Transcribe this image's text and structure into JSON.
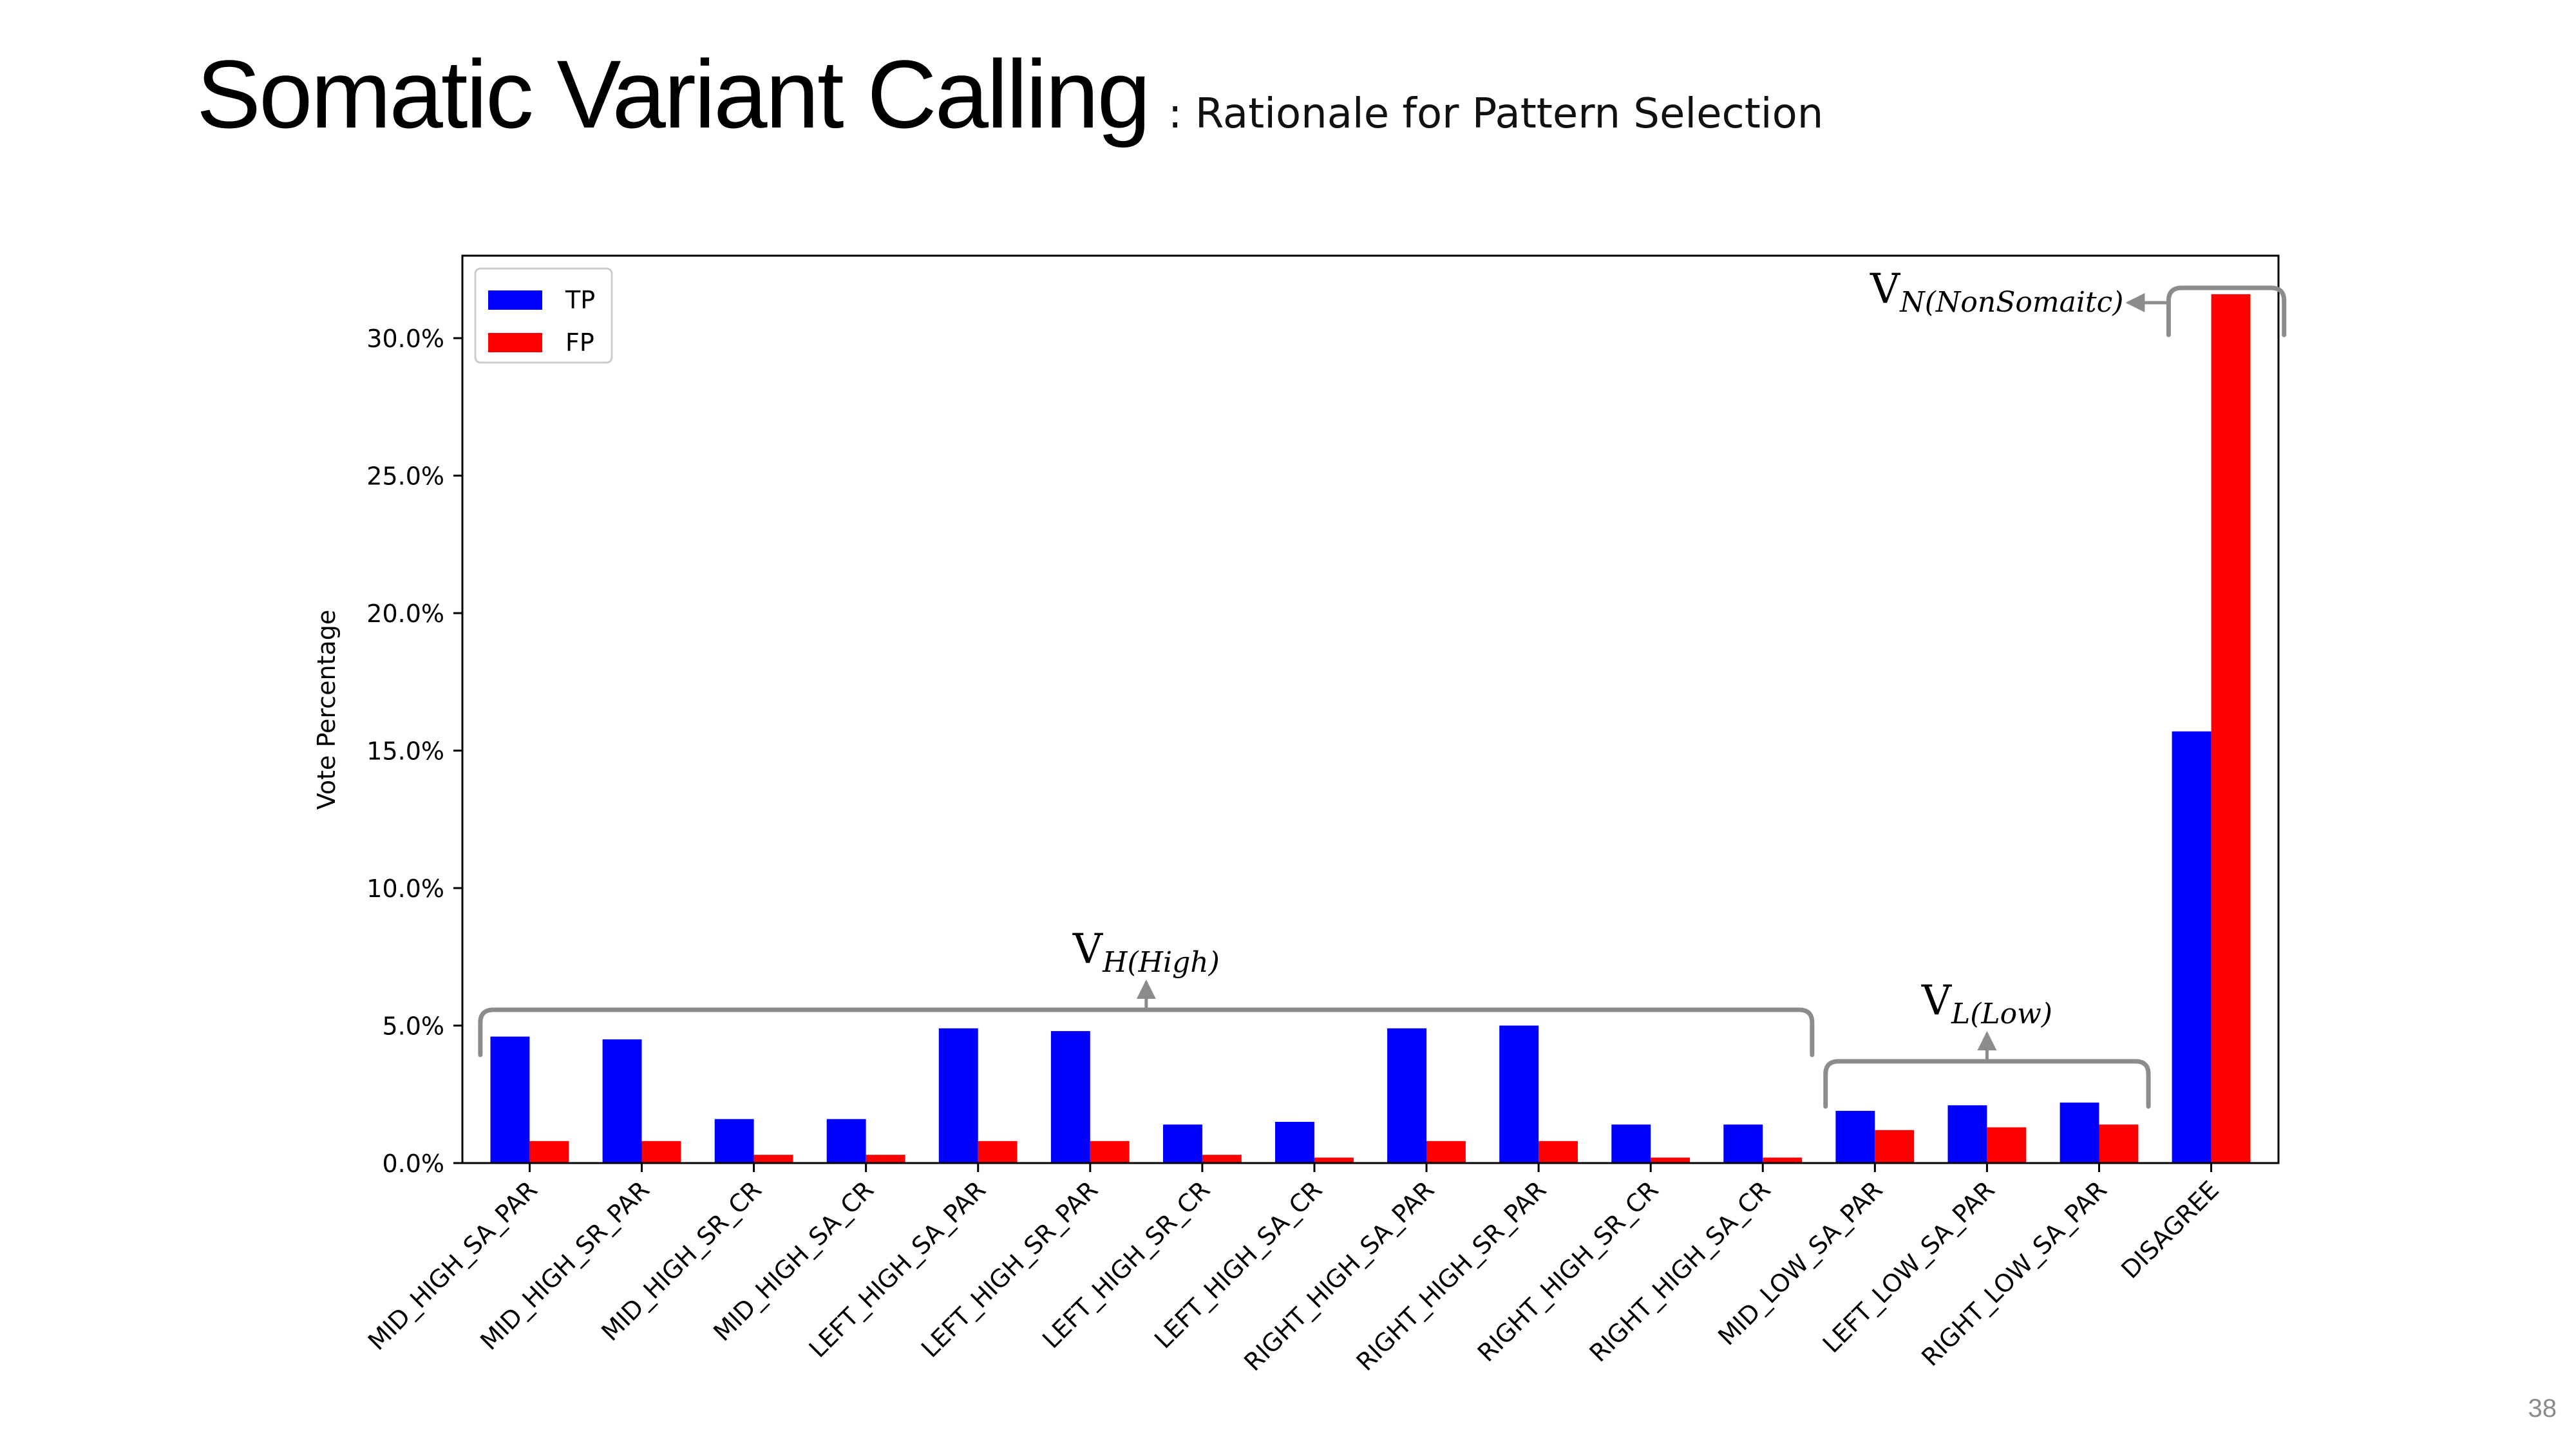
{
  "slide": {
    "title": "Somatic Variant Calling",
    "subtitle": ": Rationale for Pattern Selection",
    "page_number": "38"
  },
  "colors": {
    "tp": "#0000ff",
    "fp": "#ff0000",
    "bracket": "#8c8c8c"
  },
  "chart_data": {
    "type": "bar",
    "title": "",
    "xlabel": "",
    "ylabel": "Vote Percentage",
    "ylim": [
      0,
      33
    ],
    "yticks": [
      0,
      5,
      10,
      15,
      20,
      25,
      30
    ],
    "ytick_labels": [
      "0.0%",
      "5.0%",
      "10.0%",
      "15.0%",
      "20.0%",
      "25.0%",
      "30.0%"
    ],
    "grid": false,
    "legend": "top-left",
    "categories": [
      "MID_HIGH_SA_PAR",
      "MID_HIGH_SR_PAR",
      "MID_HIGH_SR_CR",
      "MID_HIGH_SA_CR",
      "LEFT_HIGH_SA_PAR",
      "LEFT_HIGH_SR_PAR",
      "LEFT_HIGH_SR_CR",
      "LEFT_HIGH_SA_CR",
      "RIGHT_HIGH_SA_PAR",
      "RIGHT_HIGH_SR_PAR",
      "RIGHT_HIGH_SR_CR",
      "RIGHT_HIGH_SA_CR",
      "MID_LOW_SA_PAR",
      "LEFT_LOW_SA_PAR",
      "RIGHT_LOW_SA_PAR",
      "DISAGREE"
    ],
    "series": [
      {
        "name": "TP",
        "values": [
          4.6,
          4.5,
          1.6,
          1.6,
          4.9,
          4.8,
          1.4,
          1.5,
          4.9,
          5.0,
          1.4,
          1.4,
          1.9,
          2.1,
          2.2,
          15.7
        ]
      },
      {
        "name": "FP",
        "values": [
          0.8,
          0.8,
          0.3,
          0.3,
          0.8,
          0.8,
          0.3,
          0.2,
          0.8,
          0.8,
          0.2,
          0.2,
          1.2,
          1.3,
          1.4,
          31.6
        ]
      }
    ],
    "annotations": [
      {
        "label": "V",
        "sub": "H(High)",
        "from_index": 0,
        "to_index": 11
      },
      {
        "label": "V",
        "sub": "L(Low)",
        "from_index": 12,
        "to_index": 14
      },
      {
        "label": "V",
        "sub": "N(NonSomaitc)",
        "from_index": 15,
        "to_index": 15
      }
    ]
  }
}
